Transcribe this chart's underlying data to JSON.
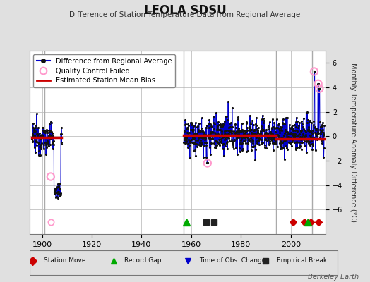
{
  "title": "LEOLA SDSU",
  "subtitle": "Difference of Station Temperature Data from Regional Average",
  "ylabel": "Monthly Temperature Anomaly Difference (°C)",
  "credit": "Berkeley Earth",
  "xlim": [
    1895,
    2014
  ],
  "ylim": [
    -8,
    7
  ],
  "yticks": [
    -6,
    -4,
    -2,
    0,
    2,
    4,
    6
  ],
  "xticks": [
    1900,
    1920,
    1940,
    1960,
    1980,
    2000
  ],
  "bg_color": "#e0e0e0",
  "plot_bg_color": "#ffffff",
  "grid_color": "#c0c0c0",
  "seg1_start": 1896.0,
  "seg1_end": 1908.0,
  "seg2_start": 1957.0,
  "seg2_end": 2013.5,
  "bias1_y": -0.1,
  "bias2_y": 0.05,
  "bias3_y": -0.2,
  "bias2_end": 1994.0,
  "vertical_lines": [
    1901.0,
    1957.0,
    1994.0,
    2008.5
  ],
  "vline_color": "#aaaaaa",
  "station_moves": [
    2001.0,
    2005.5,
    2008.0,
    2011.0
  ],
  "record_gaps": [
    1958.0,
    2007.0
  ],
  "empirical_breaks": [
    1966.0,
    1969.0
  ],
  "qc_times": [
    1903.5,
    1966.5,
    2009.4,
    2011.0,
    2011.5
  ],
  "qc_vals": [
    -3.3,
    -2.2,
    5.3,
    4.3,
    3.9
  ],
  "marker_y": -7.0,
  "line_color": "#0000cc",
  "dot_color": "#111111",
  "bias_color": "#cc0000",
  "qc_color": "#ff99cc",
  "station_move_color": "#cc0000",
  "record_gap_color": "#00aa00",
  "obs_change_color": "#0000cc",
  "empirical_break_color": "#222222",
  "legend_items": [
    "Difference from Regional Average",
    "Quality Control Failed",
    "Estimated Station Mean Bias"
  ],
  "bottom_legend": [
    [
      "Station Move",
      "#cc0000",
      "D"
    ],
    [
      "Record Gap",
      "#00aa00",
      "^"
    ],
    [
      "Time of Obs. Change",
      "#0000cc",
      "v"
    ],
    [
      "Empirical Break",
      "#222222",
      "s"
    ]
  ]
}
